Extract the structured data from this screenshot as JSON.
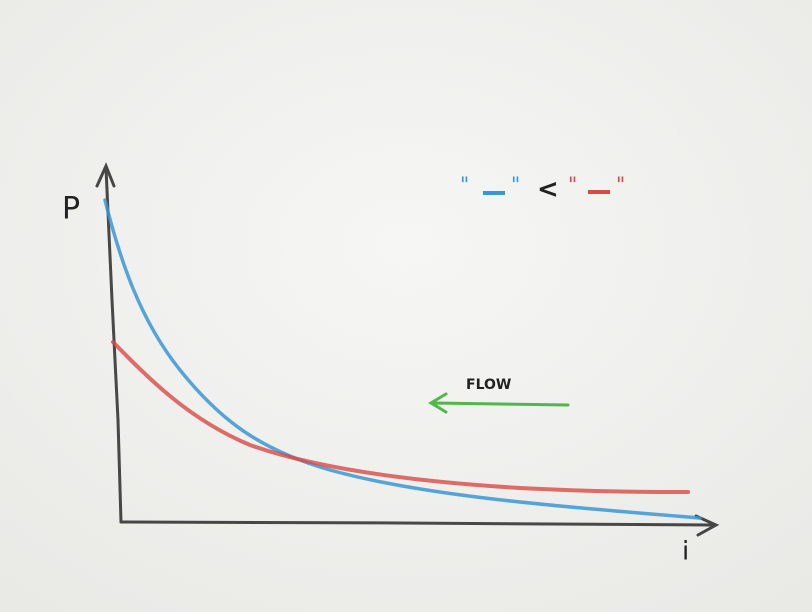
{
  "axes": {
    "y_label": "P",
    "x_label": "i"
  },
  "annotation": "FLOW",
  "legend": {
    "quote": "\"",
    "relation": "<",
    "items": [
      {
        "color": "#3a96d4"
      },
      {
        "color": "#d94a45"
      }
    ]
  },
  "flow_color": "#4fb84a"
}
